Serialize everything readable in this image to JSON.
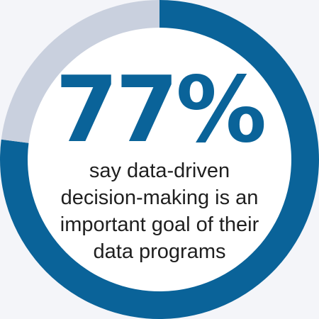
{
  "colors": {
    "background": "#f4f5f9",
    "accent": "#0a6399",
    "track": "#c9d0de",
    "inner": "#ffffff",
    "text": "#1f1f1f"
  },
  "stat": {
    "value_text": "77%",
    "caption_lines": [
      "say data-driven",
      "decision-making is an",
      "important goal of their",
      "data programs"
    ]
  },
  "chart_data": {
    "type": "pie",
    "title": "",
    "slices": [
      {
        "label": "77%",
        "value": 77,
        "color": "#0a6399"
      },
      {
        "label": "",
        "value": 23,
        "color": "#c9d0de"
      }
    ]
  }
}
